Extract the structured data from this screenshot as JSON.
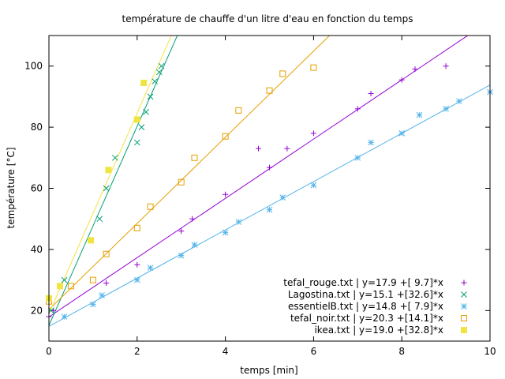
{
  "chart_data": {
    "type": "scatter",
    "title": "température de chauffe d'un litre d'eau en fonction du temps",
    "xlabel": "temps [min]",
    "ylabel": "température [°C]",
    "xlim": [
      0,
      10
    ],
    "ylim": [
      10,
      110
    ],
    "xticks": [
      "0",
      "2",
      "4",
      "6",
      "8",
      "10"
    ],
    "yticks": [
      "20",
      "40",
      "60",
      "80",
      "100"
    ],
    "xtick_values": [
      0,
      2,
      4,
      6,
      8,
      10
    ],
    "ytick_values": [
      20,
      40,
      60,
      80,
      100
    ],
    "grid": false,
    "legend_position": "bottom-right",
    "series": [
      {
        "name": "tefal_rouge.txt | y=17.9 +[ 9.7]*x",
        "marker": "plus",
        "color": "#9400d3",
        "fit": {
          "intercept": 17.9,
          "slope": 9.7
        },
        "points": [
          [
            0,
            18
          ],
          [
            0.1,
            20
          ],
          [
            1.3,
            29
          ],
          [
            2,
            35
          ],
          [
            3,
            46
          ],
          [
            3.25,
            50
          ],
          [
            4,
            58
          ],
          [
            4.75,
            73
          ],
          [
            5,
            66.8
          ],
          [
            5.4,
            73
          ],
          [
            6,
            78
          ],
          [
            7,
            86
          ],
          [
            7.3,
            91
          ],
          [
            8,
            95.5
          ],
          [
            8.3,
            99
          ],
          [
            9,
            100
          ]
        ]
      },
      {
        "name": "Lagostina.txt | y=15.1 +[32.6]*x",
        "marker": "cross",
        "color": "#009e73",
        "fit": {
          "intercept": 15.1,
          "slope": 32.6
        },
        "points": [
          [
            0.05,
            20
          ],
          [
            0.35,
            30
          ],
          [
            1.15,
            50
          ],
          [
            1.3,
            60
          ],
          [
            1.5,
            70
          ],
          [
            2,
            75
          ],
          [
            2.1,
            80
          ],
          [
            2.2,
            85
          ],
          [
            2.3,
            90
          ],
          [
            2.4,
            95
          ],
          [
            2.5,
            98
          ],
          [
            2.55,
            100
          ]
        ]
      },
      {
        "name": "essentielB.txt | y=14.8 +[ 7.9]*x",
        "marker": "star",
        "color": "#56b4e9",
        "fit": {
          "intercept": 14.8,
          "slope": 7.9
        },
        "points": [
          [
            0.35,
            18
          ],
          [
            1,
            22
          ],
          [
            1.2,
            25
          ],
          [
            2,
            30
          ],
          [
            2.3,
            34
          ],
          [
            3,
            38
          ],
          [
            3.3,
            41.5
          ],
          [
            4,
            45.5
          ],
          [
            4.3,
            49
          ],
          [
            5,
            53
          ],
          [
            5.3,
            57
          ],
          [
            6,
            61
          ],
          [
            7,
            70
          ],
          [
            7.3,
            75
          ],
          [
            8,
            78
          ],
          [
            8.4,
            84
          ],
          [
            9,
            86
          ],
          [
            9.3,
            88.5
          ],
          [
            10,
            91.5
          ]
        ]
      },
      {
        "name": "tefal_noir.txt | y=20.3 +[14.1]*x",
        "marker": "square",
        "color": "#e69f00",
        "fit": {
          "intercept": 20.3,
          "slope": 14.1
        },
        "points": [
          [
            0,
            23
          ],
          [
            0.5,
            28
          ],
          [
            1,
            30
          ],
          [
            1.3,
            38.5
          ],
          [
            2,
            47
          ],
          [
            2.3,
            54
          ],
          [
            3,
            62
          ],
          [
            3.3,
            70
          ],
          [
            4,
            77
          ],
          [
            4.3,
            85.5
          ],
          [
            5,
            92
          ],
          [
            5.3,
            97.5
          ],
          [
            6,
            99.5
          ]
        ]
      },
      {
        "name": "ikea.txt | y=19.0 +[32.8]*x",
        "marker": "filled-square",
        "color": "#f0e442",
        "fit": {
          "intercept": 19.0,
          "slope": 32.8
        },
        "points": [
          [
            0,
            24
          ],
          [
            0.25,
            28
          ],
          [
            0.95,
            43
          ],
          [
            1.35,
            66
          ],
          [
            2,
            82.5
          ],
          [
            2.15,
            94.5
          ]
        ]
      }
    ]
  }
}
